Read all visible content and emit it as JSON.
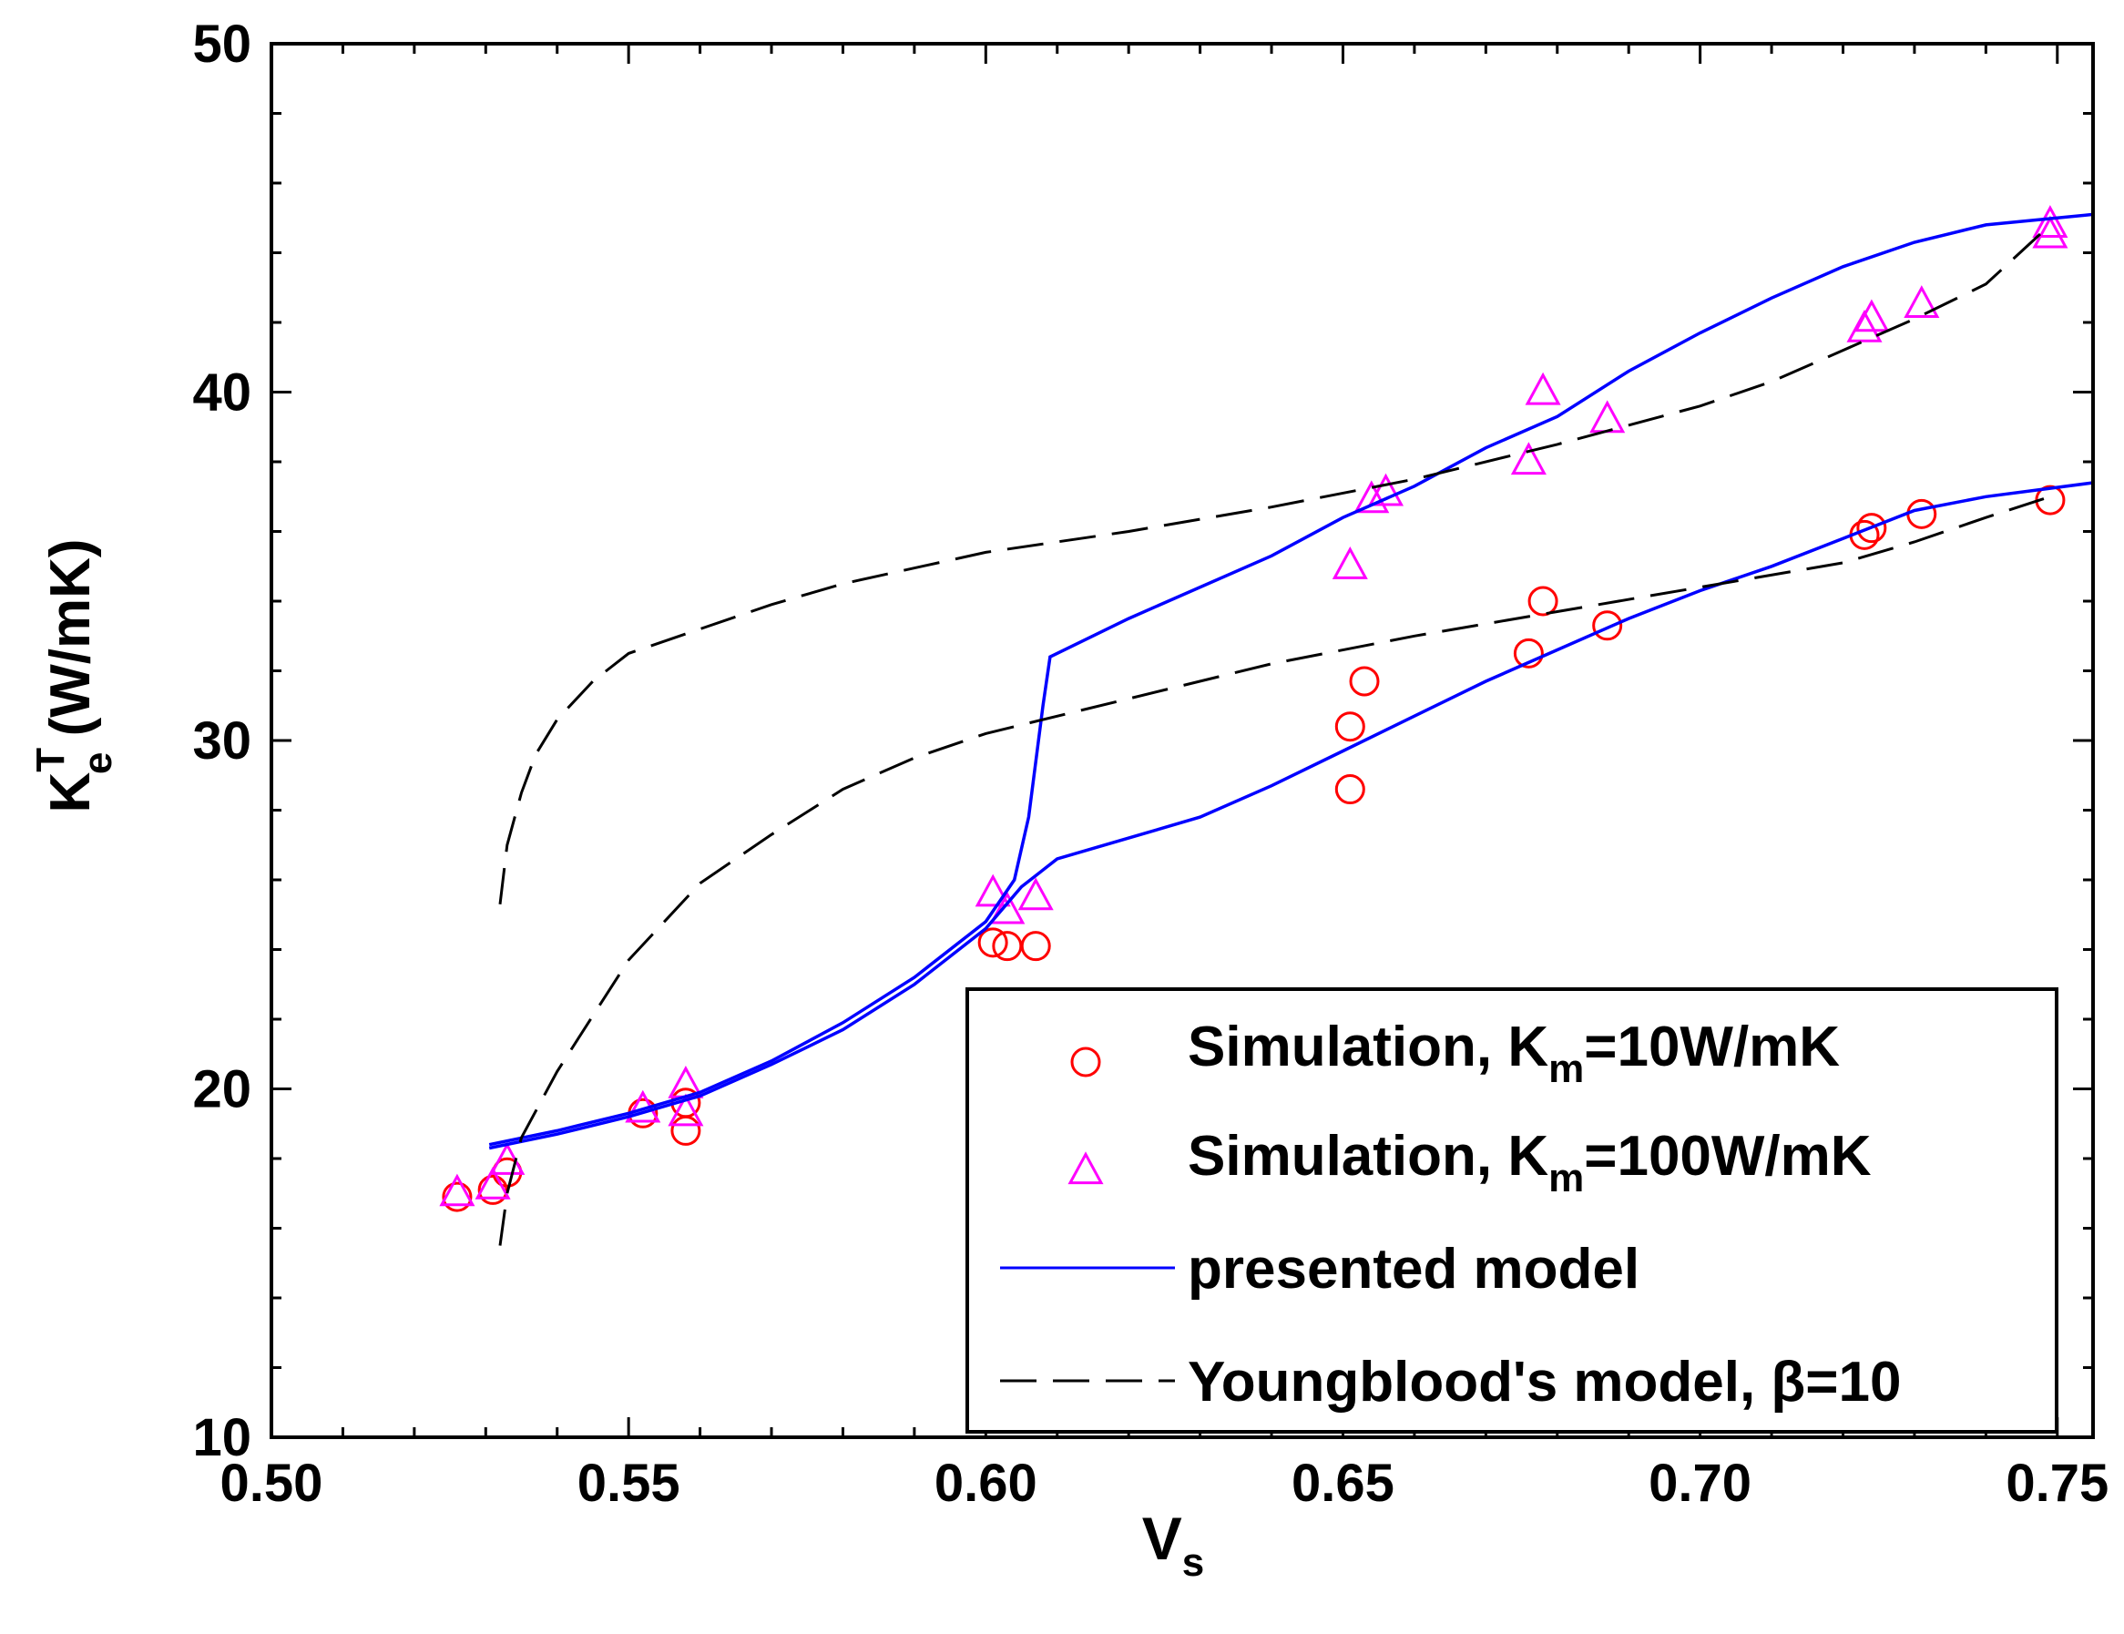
{
  "chart_data": {
    "type": "scatter",
    "title": "",
    "xlabel": {
      "main": "V",
      "sub": "s"
    },
    "ylabel": {
      "main": "K",
      "sub": "e",
      "sup": "T",
      "unit": "(W/mK)"
    },
    "xlim": [
      0.5,
      0.755
    ],
    "ylim": [
      10,
      50
    ],
    "xticks": [
      0.5,
      0.55,
      0.6,
      0.65,
      0.7,
      0.75
    ],
    "xtick_labels": [
      "0.50",
      "0.55",
      "0.60",
      "0.65",
      "0.70",
      "0.75"
    ],
    "yticks": [
      10,
      20,
      30,
      40,
      50
    ],
    "ytick_labels": [
      "10",
      "20",
      "30",
      "40",
      "50"
    ],
    "grid": false,
    "legend_position": "bottom-right",
    "colors": {
      "sim10": "#ff0000",
      "sim100": "#ff00ff",
      "presented": "#0000ff",
      "youngblood": "#000000"
    },
    "legend": [
      {
        "key": "sim10",
        "marker": "circle",
        "text": "Simulation, K",
        "sub": "m",
        "rest": "=10W/mK"
      },
      {
        "key": "sim100",
        "marker": "triangle",
        "text": "Simulation, K",
        "sub": "m",
        "rest": "=100W/mK"
      },
      {
        "key": "presented",
        "marker": "solid-line",
        "text": "presented model",
        "sub": "",
        "rest": ""
      },
      {
        "key": "youngblood",
        "marker": "dashed-line",
        "text": "Youngblood's model, β=10",
        "sub": "",
        "rest": ""
      }
    ],
    "series": [
      {
        "name": "Simulation, Km=10W/mK",
        "kind": "scatter",
        "marker": "circle",
        "color": "#ff0000",
        "points": [
          [
            0.526,
            16.9
          ],
          [
            0.531,
            17.1
          ],
          [
            0.533,
            17.6
          ],
          [
            0.552,
            19.3
          ],
          [
            0.558,
            18.8
          ],
          [
            0.558,
            19.6
          ],
          [
            0.601,
            24.2
          ],
          [
            0.603,
            24.1
          ],
          [
            0.607,
            24.1
          ],
          [
            0.651,
            28.6
          ],
          [
            0.651,
            30.4
          ],
          [
            0.653,
            31.7
          ],
          [
            0.676,
            32.5
          ],
          [
            0.678,
            34.0
          ],
          [
            0.687,
            33.3
          ],
          [
            0.723,
            35.9
          ],
          [
            0.724,
            36.1
          ],
          [
            0.731,
            36.5
          ],
          [
            0.749,
            36.9
          ]
        ]
      },
      {
        "name": "Simulation, Km=100W/mK",
        "kind": "scatter",
        "marker": "triangle",
        "color": "#ff00ff",
        "points": [
          [
            0.526,
            17.0
          ],
          [
            0.531,
            17.2
          ],
          [
            0.533,
            17.9
          ],
          [
            0.552,
            19.4
          ],
          [
            0.558,
            19.3
          ],
          [
            0.558,
            20.1
          ],
          [
            0.601,
            25.6
          ],
          [
            0.603,
            25.1
          ],
          [
            0.607,
            25.5
          ],
          [
            0.651,
            35.0
          ],
          [
            0.654,
            36.9
          ],
          [
            0.656,
            37.1
          ],
          [
            0.676,
            38.0
          ],
          [
            0.678,
            40.0
          ],
          [
            0.687,
            39.2
          ],
          [
            0.723,
            41.8
          ],
          [
            0.724,
            42.1
          ],
          [
            0.731,
            42.5
          ],
          [
            0.749,
            44.5
          ],
          [
            0.749,
            44.8
          ]
        ]
      },
      {
        "name": "presented model (Km=100)",
        "kind": "line",
        "style": "solid",
        "color": "#0000ff",
        "points": [
          [
            0.5305,
            18.4
          ],
          [
            0.54,
            18.8
          ],
          [
            0.55,
            19.3
          ],
          [
            0.56,
            19.9
          ],
          [
            0.57,
            20.8
          ],
          [
            0.58,
            21.9
          ],
          [
            0.59,
            23.2
          ],
          [
            0.6,
            24.8
          ],
          [
            0.604,
            26.0
          ],
          [
            0.606,
            27.8
          ],
          [
            0.608,
            31.0
          ],
          [
            0.609,
            32.4
          ],
          [
            0.62,
            33.5
          ],
          [
            0.64,
            35.3
          ],
          [
            0.65,
            36.4
          ],
          [
            0.66,
            37.3
          ],
          [
            0.67,
            38.4
          ],
          [
            0.68,
            39.3
          ],
          [
            0.69,
            40.6
          ],
          [
            0.7,
            41.7
          ],
          [
            0.71,
            42.7
          ],
          [
            0.72,
            43.6
          ],
          [
            0.73,
            44.3
          ],
          [
            0.74,
            44.8
          ],
          [
            0.755,
            45.1
          ]
        ]
      },
      {
        "name": "presented model (Km=10)",
        "kind": "line",
        "style": "solid",
        "color": "#0000ff",
        "points": [
          [
            0.5305,
            18.3
          ],
          [
            0.54,
            18.7
          ],
          [
            0.55,
            19.2
          ],
          [
            0.56,
            19.8
          ],
          [
            0.57,
            20.7
          ],
          [
            0.58,
            21.7
          ],
          [
            0.59,
            23.0
          ],
          [
            0.6,
            24.6
          ],
          [
            0.605,
            25.8
          ],
          [
            0.61,
            26.6
          ],
          [
            0.62,
            27.2
          ],
          [
            0.63,
            27.8
          ],
          [
            0.64,
            28.7
          ],
          [
            0.65,
            29.7
          ],
          [
            0.66,
            30.7
          ],
          [
            0.67,
            31.7
          ],
          [
            0.68,
            32.6
          ],
          [
            0.69,
            33.5
          ],
          [
            0.7,
            34.3
          ],
          [
            0.71,
            35.0
          ],
          [
            0.72,
            35.8
          ],
          [
            0.73,
            36.6
          ],
          [
            0.74,
            37.0
          ],
          [
            0.755,
            37.4
          ]
        ]
      },
      {
        "name": "Youngblood's model, β=10 (Km=100)",
        "kind": "line",
        "style": "dashed",
        "color": "#000000",
        "points": [
          [
            0.532,
            25.3
          ],
          [
            0.533,
            27.0
          ],
          [
            0.535,
            28.5
          ],
          [
            0.537,
            29.6
          ],
          [
            0.54,
            30.6
          ],
          [
            0.545,
            31.7
          ],
          [
            0.55,
            32.5
          ],
          [
            0.56,
            33.2
          ],
          [
            0.57,
            33.9
          ],
          [
            0.58,
            34.5
          ],
          [
            0.6,
            35.4
          ],
          [
            0.62,
            36.0
          ],
          [
            0.64,
            36.7
          ],
          [
            0.66,
            37.5
          ],
          [
            0.68,
            38.5
          ],
          [
            0.7,
            39.6
          ],
          [
            0.71,
            40.3
          ],
          [
            0.72,
            41.2
          ],
          [
            0.73,
            42.1
          ],
          [
            0.74,
            43.1
          ],
          [
            0.749,
            44.8
          ]
        ]
      },
      {
        "name": "Youngblood's model, β=10 (Km=10)",
        "kind": "line",
        "style": "dashed",
        "color": "#000000",
        "points": [
          [
            0.532,
            15.5
          ],
          [
            0.533,
            17.0
          ],
          [
            0.535,
            18.6
          ],
          [
            0.54,
            20.5
          ],
          [
            0.545,
            22.1
          ],
          [
            0.55,
            23.7
          ],
          [
            0.56,
            25.9
          ],
          [
            0.57,
            27.3
          ],
          [
            0.58,
            28.6
          ],
          [
            0.59,
            29.5
          ],
          [
            0.6,
            30.2
          ],
          [
            0.62,
            31.2
          ],
          [
            0.64,
            32.2
          ],
          [
            0.66,
            33.0
          ],
          [
            0.68,
            33.7
          ],
          [
            0.7,
            34.4
          ],
          [
            0.72,
            35.1
          ],
          [
            0.73,
            35.7
          ],
          [
            0.74,
            36.4
          ],
          [
            0.749,
            37.0
          ]
        ]
      }
    ]
  }
}
